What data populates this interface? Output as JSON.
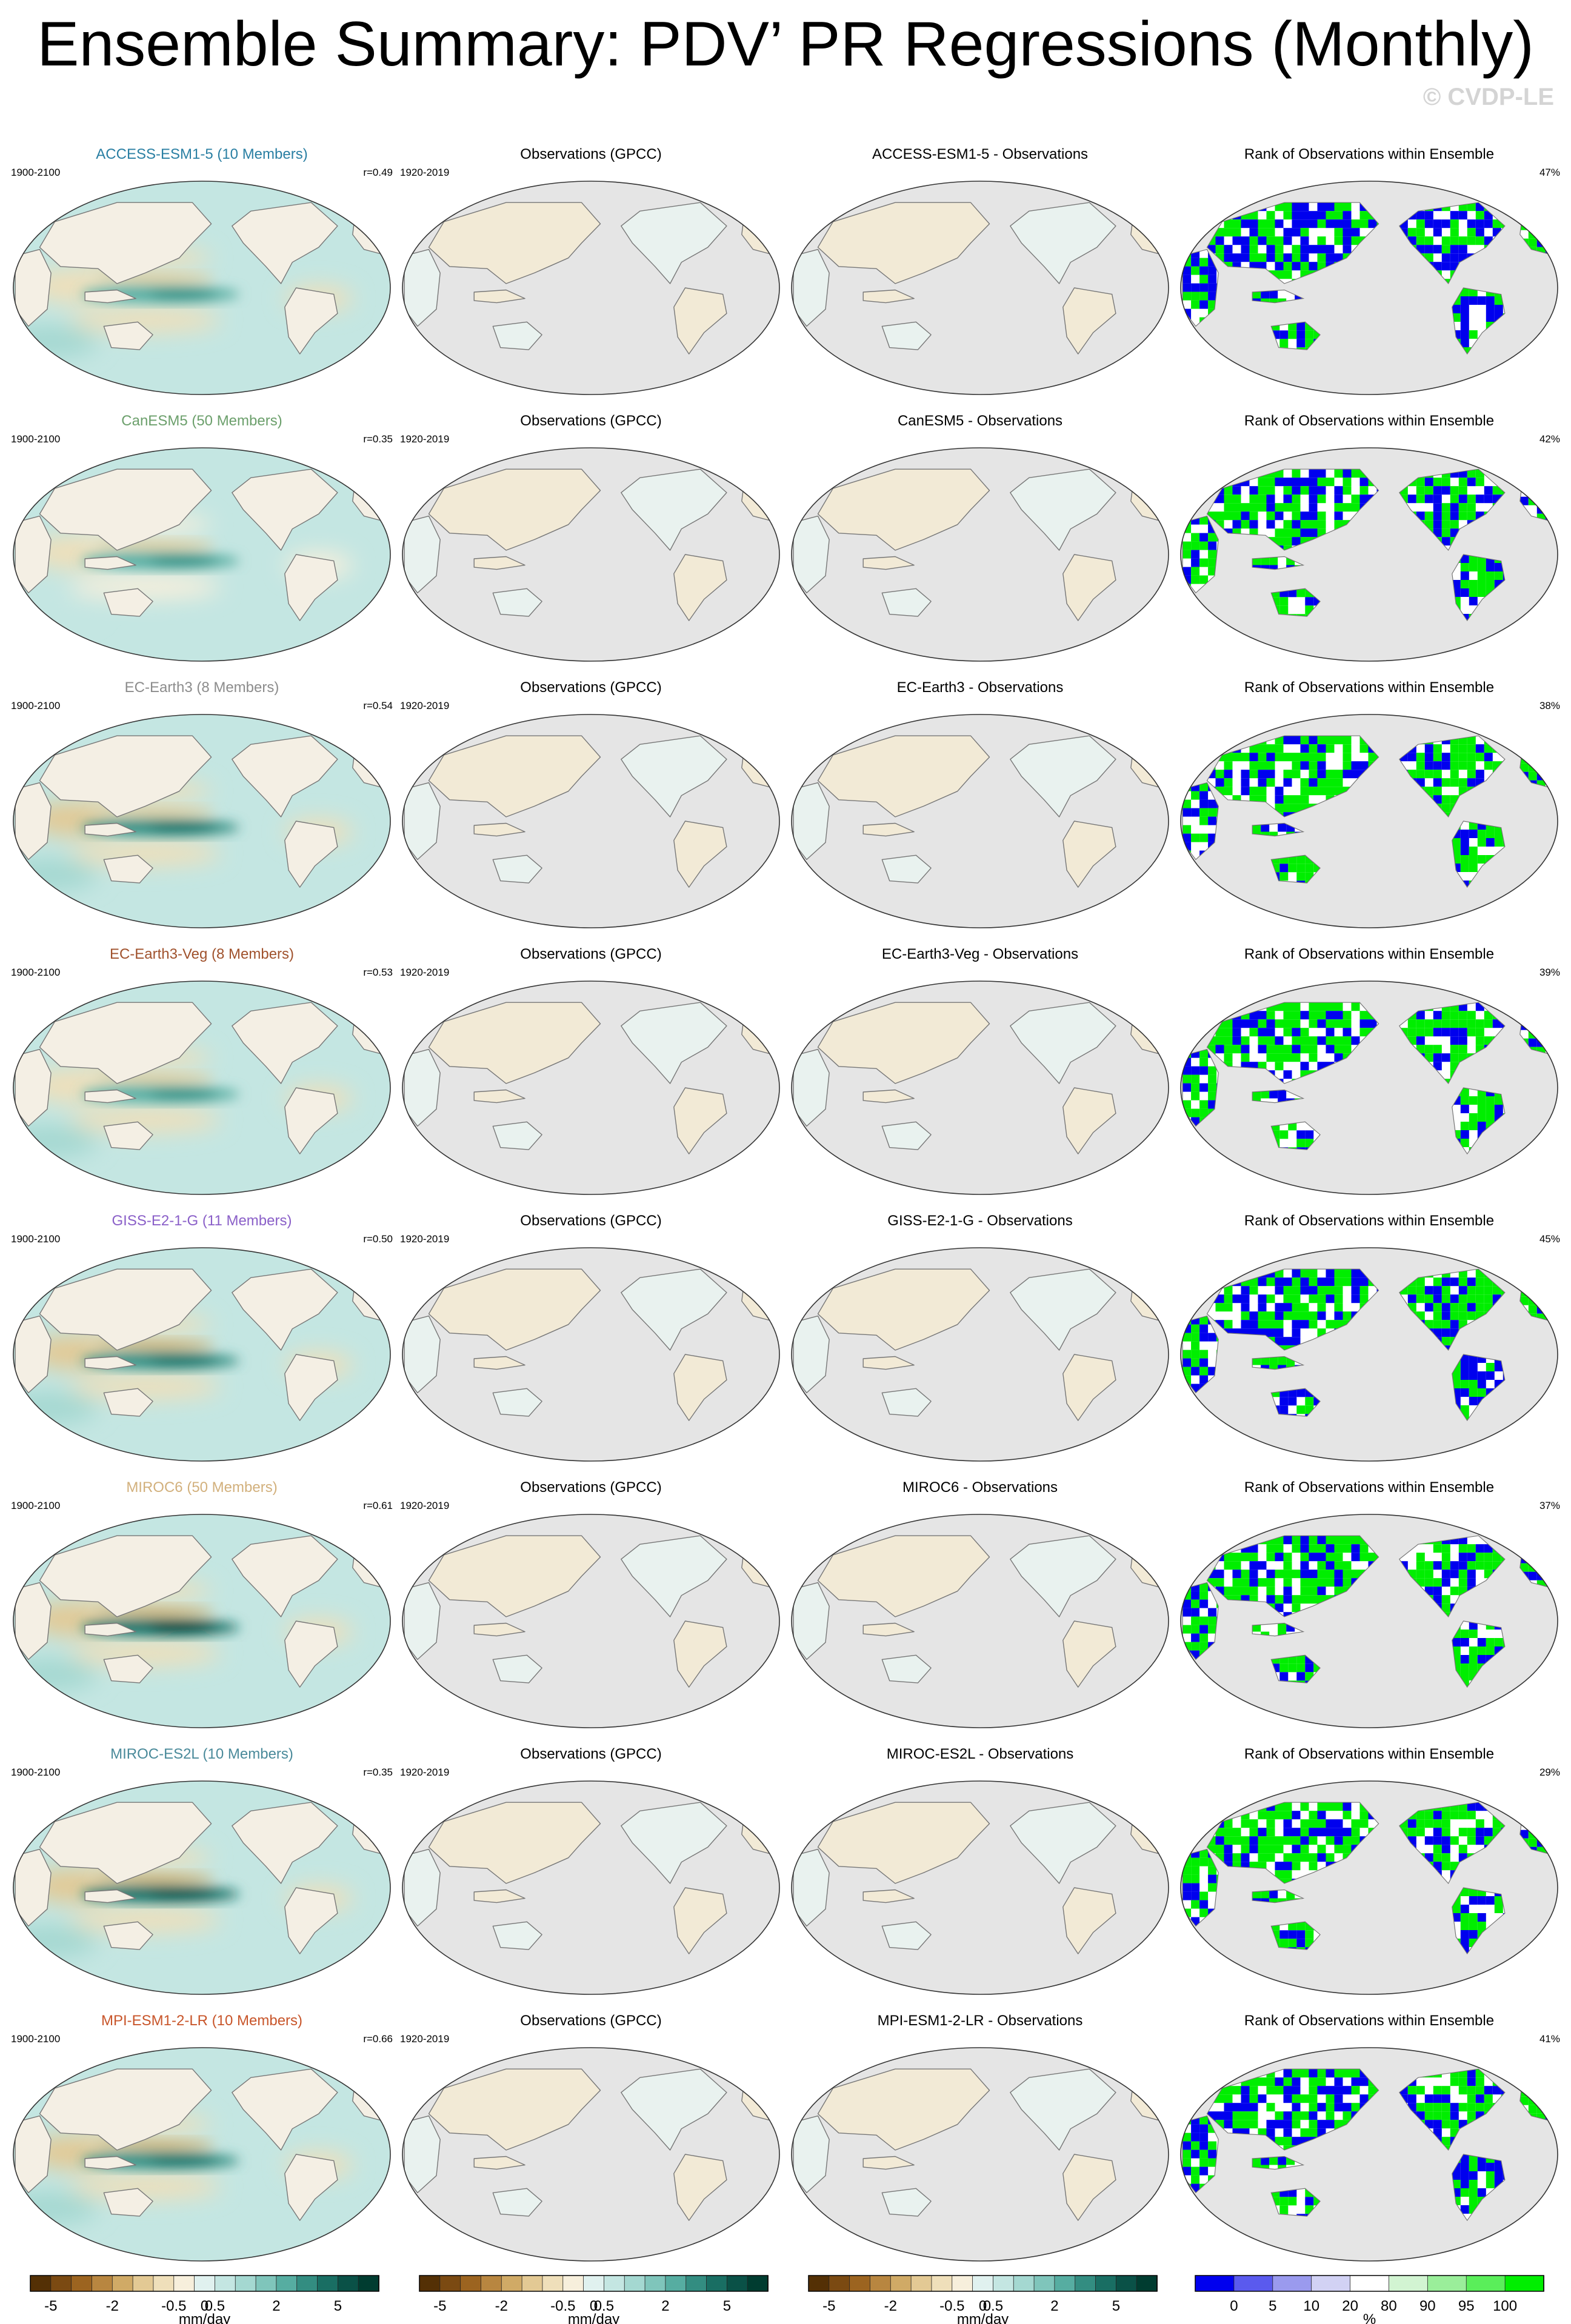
{
  "title": "Ensemble Summary: PDV’ PR Regressions (Monthly)",
  "watermark": "© CVDP-LE",
  "colors": {
    "land": "#e5e5e5",
    "ocean_base": "#f1f5f1",
    "coast": "#777777",
    "rank_low": "#0000ee",
    "rank_high": "#00ee00"
  },
  "chart_data": {
    "type": "heatmap",
    "columns": [
      "model",
      "observations",
      "difference",
      "rank"
    ],
    "rows": [
      {
        "model": "ACCESS-ESM1-5 (10 Members)",
        "model_color": "#2a7fa3",
        "model_period": "1900-2100",
        "r": "r=0.49",
        "obs_title": "Observations (GPCC)",
        "obs_period": "1920-2019",
        "diff_title": "ACCESS-ESM1-5 - Observations",
        "rank_title": "Rank of Observations within Ensemble",
        "rank_pct": "47%",
        "strength": 0.72,
        "low_frac": 0.47
      },
      {
        "model": "CanESM5 (50 Members)",
        "model_color": "#6b9f6b",
        "model_period": "1900-2100",
        "r": "r=0.35",
        "obs_title": "Observations (GPCC)",
        "obs_period": "1920-2019",
        "diff_title": "CanESM5 - Observations",
        "rank_title": "Rank of Observations within Ensemble",
        "rank_pct": "42%",
        "strength": 0.62,
        "low_frac": 0.42
      },
      {
        "model": "EC-Earth3 (8 Members)",
        "model_color": "#8c8c8c",
        "model_period": "1900-2100",
        "r": "r=0.54",
        "obs_title": "Observations (GPCC)",
        "obs_period": "1920-2019",
        "diff_title": "EC-Earth3 - Observations",
        "rank_title": "Rank of Observations within Ensemble",
        "rank_pct": "38%",
        "strength": 0.75,
        "low_frac": 0.38
      },
      {
        "model": "EC-Earth3-Veg (8 Members)",
        "model_color": "#a0522d",
        "model_period": "1900-2100",
        "r": "r=0.53",
        "obs_title": "Observations (GPCC)",
        "obs_period": "1920-2019",
        "diff_title": "EC-Earth3-Veg - Observations",
        "rank_title": "Rank of Observations within Ensemble",
        "rank_pct": "39%",
        "strength": 0.7,
        "low_frac": 0.39
      },
      {
        "model": "GISS-E2-1-G (11 Members)",
        "model_color": "#8a5fc8",
        "model_period": "1900-2100",
        "r": "r=0.50",
        "obs_title": "Observations (GPCC)",
        "obs_period": "1920-2019",
        "diff_title": "GISS-E2-1-G - Observations",
        "rank_title": "Rank of Observations within Ensemble",
        "rank_pct": "45%",
        "strength": 0.85,
        "low_frac": 0.45
      },
      {
        "model": "MIROC6 (50 Members)",
        "model_color": "#d2b07c",
        "model_period": "1900-2100",
        "r": "r=0.61",
        "obs_title": "Observations (GPCC)",
        "obs_period": "1920-2019",
        "diff_title": "MIROC6 - Observations",
        "rank_title": "Rank of Observations within Ensemble",
        "rank_pct": "37%",
        "strength": 1.0,
        "low_frac": 0.37
      },
      {
        "model": "MIROC-ES2L (10 Members)",
        "model_color": "#4a8a9a",
        "model_period": "1900-2100",
        "r": "r=0.35",
        "obs_title": "Observations (GPCC)",
        "obs_period": "1920-2019",
        "diff_title": "MIROC-ES2L - Observations",
        "rank_title": "Rank of Observations within Ensemble",
        "rank_pct": "29%",
        "strength": 0.95,
        "low_frac": 0.29
      },
      {
        "model": "MPI-ESM1-2-LR (10 Members)",
        "model_color": "#c8552a",
        "model_period": "1900-2100",
        "r": "r=0.66",
        "obs_title": "Observations (GPCC)",
        "obs_period": "1920-2019",
        "diff_title": "MPI-ESM1-2-LR - Observations",
        "rank_title": "Rank of Observations within Ensemble",
        "rank_pct": "41%",
        "strength": 0.8,
        "low_frac": 0.41
      }
    ],
    "colorbar_pr": {
      "unit": "mm/day",
      "ticks": [
        "-5",
        "-2",
        "-0.5",
        "0",
        "0.5",
        "2",
        "5"
      ],
      "colors": [
        "#543005",
        "#7b4a12",
        "#9c6420",
        "#b88640",
        "#d0aa66",
        "#e3c994",
        "#efdfba",
        "#f7efdc",
        "#e0f1ef",
        "#c4e6e2",
        "#a4d8d1",
        "#7fc5bb",
        "#56ada1",
        "#338d81",
        "#196e63",
        "#0a5147",
        "#003c30"
      ]
    },
    "colorbar_rank": {
      "unit": "%",
      "ticks": [
        "0",
        "5",
        "10",
        "20",
        "80",
        "90",
        "95",
        "100"
      ],
      "colors": [
        "#0000ee",
        "#5a5aee",
        "#9a9aee",
        "#d2d2f4",
        "#ffffff",
        "#d2f4d2",
        "#9aee9a",
        "#5aee5a",
        "#00ee00"
      ]
    }
  }
}
